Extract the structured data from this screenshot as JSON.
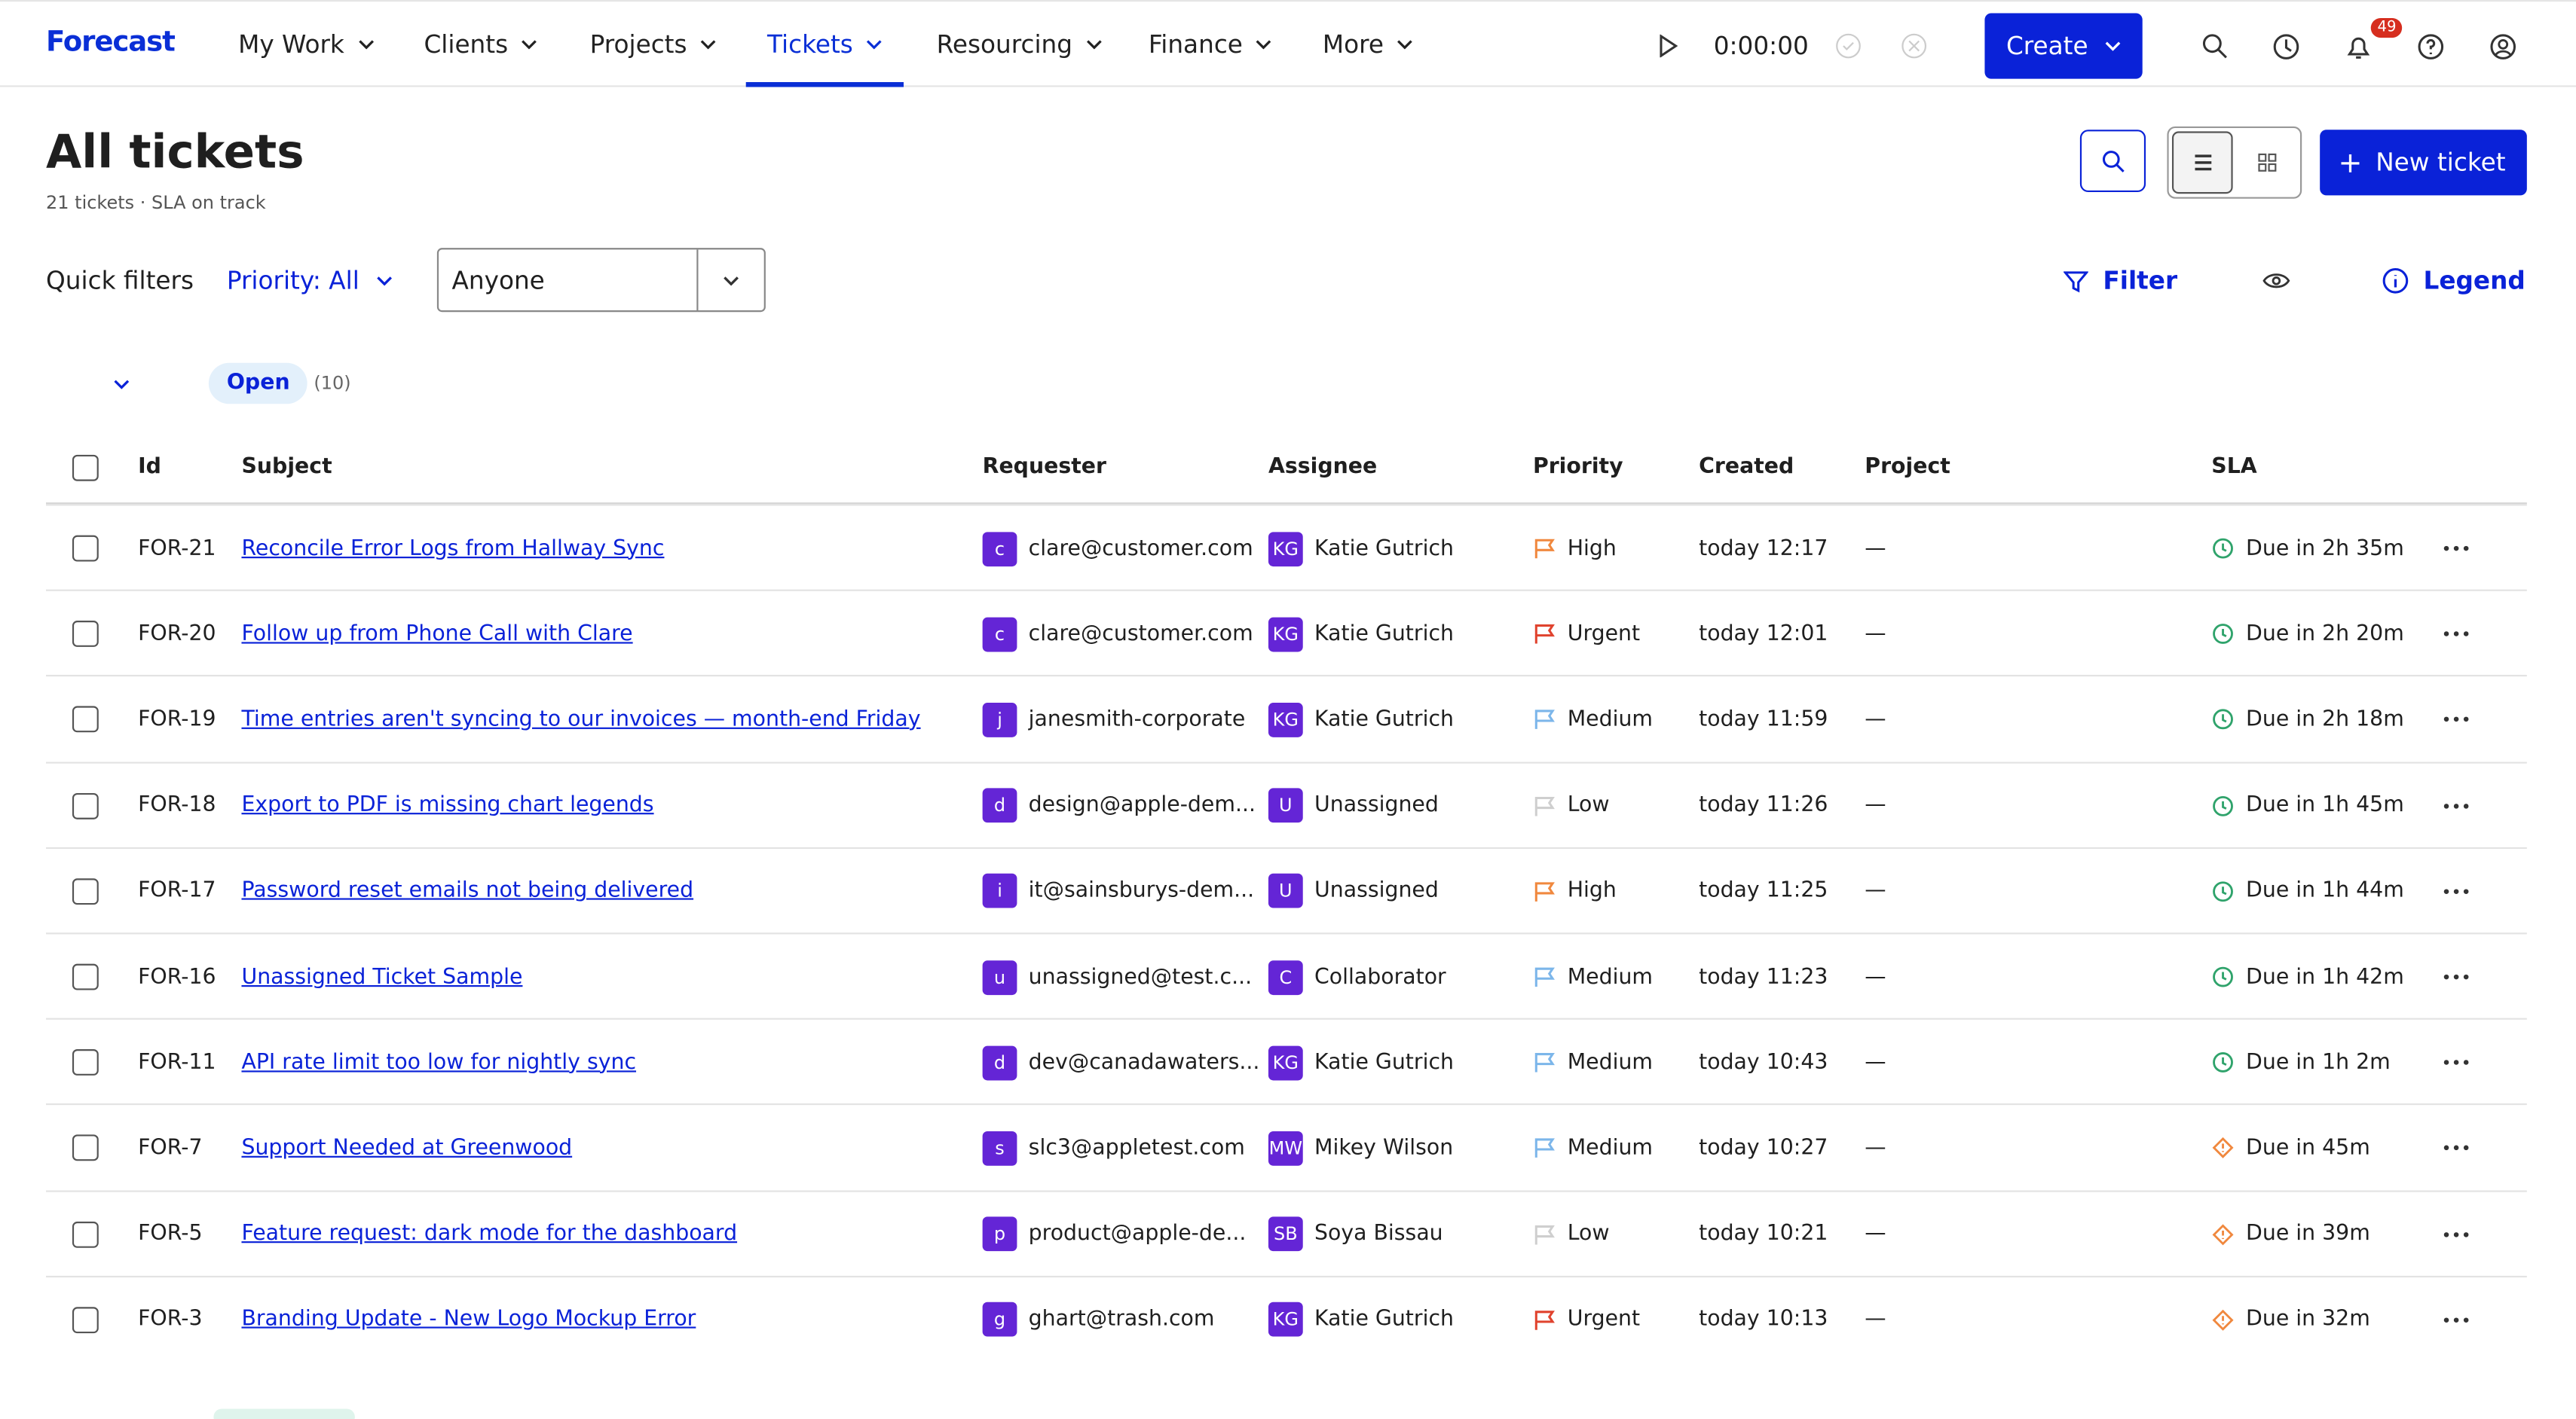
{
  "nav": {
    "logo": "Forecast",
    "items": [
      "My Work",
      "Clients",
      "Projects",
      "Tickets",
      "Resourcing",
      "Finance",
      "More"
    ],
    "active": 3,
    "timer": "0:00:00",
    "create": "Create",
    "badge": "49"
  },
  "header": {
    "title": "All tickets",
    "subtitle": "21 tickets · SLA on track",
    "new_ticket": "New ticket"
  },
  "filters": {
    "quick": "Quick filters",
    "priority": "Priority: All",
    "assignee": "Anyone",
    "filter": "Filter",
    "legend": "Legend"
  },
  "group": {
    "name": "Open",
    "count": "(10)"
  },
  "table": {
    "columns": [
      "Id",
      "Subject",
      "Requester",
      "Assignee",
      "Priority",
      "Created",
      "Project",
      "SLA"
    ],
    "rows": [
      {
        "id": "FOR-21",
        "subject": "Reconcile Error Logs from Hallway Sync",
        "req_avatar": "c",
        "requester": "clare@customer.com",
        "asg_avatar": "KG",
        "assignee": "Katie Gutrich",
        "priority": "High",
        "priority_color": "#f0883e",
        "created": "today 12:17",
        "project": "—",
        "sla": "Due in 2h 35m",
        "sla_color": "#2fa36b"
      },
      {
        "id": "FOR-20",
        "subject": "Follow up from Phone Call with Clare",
        "req_avatar": "c",
        "requester": "clare@customer.com",
        "asg_avatar": "KG",
        "assignee": "Katie Gutrich",
        "priority": "Urgent",
        "priority_color": "#e0432e",
        "created": "today 12:01",
        "project": "—",
        "sla": "Due in 2h 20m",
        "sla_color": "#2fa36b"
      },
      {
        "id": "FOR-19",
        "subject": "Time entries aren't syncing to our invoices — month-end Friday",
        "req_avatar": "j",
        "requester": "janesmith-corporate",
        "asg_avatar": "KG",
        "assignee": "Katie Gutrich",
        "priority": "Medium",
        "priority_color": "#7cb6ea",
        "created": "today 11:59",
        "project": "—",
        "sla": "Due in 2h 18m",
        "sla_color": "#2fa36b"
      },
      {
        "id": "FOR-18",
        "subject": "Export to PDF is missing chart legends",
        "req_avatar": "d",
        "requester": "design@apple-dem...",
        "asg_avatar": "U",
        "assignee": "Unassigned",
        "priority": "Low",
        "priority_color": "#cfcfcf",
        "created": "today 11:26",
        "project": "—",
        "sla": "Due in 1h 45m",
        "sla_color": "#2fa36b"
      },
      {
        "id": "FOR-17",
        "subject": "Password reset emails not being delivered",
        "req_avatar": "i",
        "requester": "it@sainsburys-dem...",
        "asg_avatar": "U",
        "assignee": "Unassigned",
        "priority": "High",
        "priority_color": "#f0883e",
        "created": "today 11:25",
        "project": "—",
        "sla": "Due in 1h 44m",
        "sla_color": "#2fa36b"
      },
      {
        "id": "FOR-16",
        "subject": "Unassigned Ticket Sample",
        "req_avatar": "u",
        "requester": "unassigned@test.c...",
        "asg_avatar": "C",
        "assignee": "Collaborator",
        "priority": "Medium",
        "priority_color": "#7cb6ea",
        "created": "today 11:23",
        "project": "—",
        "sla": "Due in 1h 42m",
        "sla_color": "#2fa36b"
      },
      {
        "id": "FOR-11",
        "subject": "API rate limit too low for nightly sync",
        "req_avatar": "d",
        "requester": "dev@canadawaters...",
        "asg_avatar": "KG",
        "assignee": "Katie Gutrich",
        "priority": "Medium",
        "priority_color": "#7cb6ea",
        "created": "today 10:43",
        "project": "—",
        "sla": "Due in 1h 2m",
        "sla_color": "#2fa36b"
      },
      {
        "id": "FOR-7",
        "subject": "Support Needed at Greenwood",
        "req_avatar": "s",
        "requester": "slc3@appletest.com",
        "asg_avatar": "MW",
        "assignee": "Mikey Wilson",
        "priority": "Medium",
        "priority_color": "#7cb6ea",
        "created": "today 10:27",
        "project": "—",
        "sla": "Due in 45m",
        "sla_color": "#f0883e"
      },
      {
        "id": "FOR-5",
        "subject": "Feature request: dark mode for the dashboard",
        "req_avatar": "p",
        "requester": "product@apple-de...",
        "asg_avatar": "SB",
        "assignee": "Soya Bissau",
        "priority": "Low",
        "priority_color": "#cfcfcf",
        "created": "today 10:21",
        "project": "—",
        "sla": "Due in 39m",
        "sla_color": "#f0883e"
      },
      {
        "id": "FOR-3",
        "subject": "Branding Update - New Logo Mockup Error",
        "req_avatar": "g",
        "requester": "ghart@trash.com",
        "asg_avatar": "KG",
        "assignee": "Katie Gutrich",
        "priority": "Urgent",
        "priority_color": "#e0432e",
        "created": "today 10:13",
        "project": "—",
        "sla": "Due in 32m",
        "sla_color": "#f0883e"
      }
    ]
  }
}
